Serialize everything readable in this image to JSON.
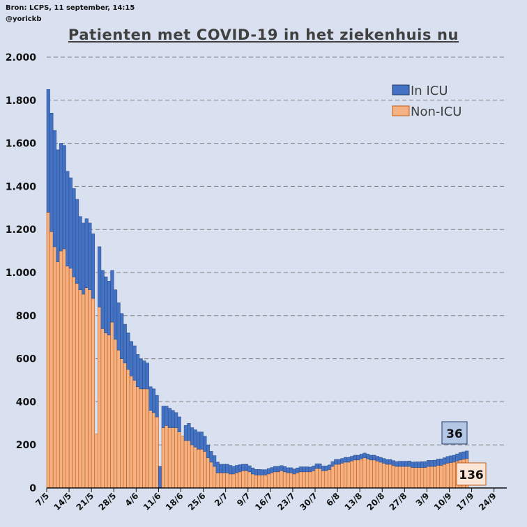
{
  "source": {
    "line1": "Bron: LCPS, 11 september, 14:15",
    "line2": "@yorickb"
  },
  "colors": {
    "icu": "#4472c4",
    "non_icu": "#f4b183",
    "grid": "#7f7f7f",
    "background": "#d9e1f0"
  },
  "chart_data": {
    "type": "bar",
    "stacked": true,
    "title": "Patienten met COVID-19 in het ziekenhuis nu",
    "xlabel": "",
    "ylabel": "",
    "ylim": [
      0,
      2000
    ],
    "yticks": [
      0,
      200,
      400,
      600,
      800,
      1000,
      1200,
      1400,
      1600,
      1800,
      2000
    ],
    "ytick_labels": [
      "0",
      "200",
      "400",
      "600",
      "800",
      "1.000",
      "1.200",
      "1.400",
      "1.600",
      "1.800",
      "2.000"
    ],
    "xtick_labels": [
      "7/5",
      "14/5",
      "21/5",
      "28/5",
      "4/6",
      "11/6",
      "18/6",
      "25/6",
      "2/7",
      "9/7",
      "16/7",
      "23/7",
      "30/7",
      "6/8",
      "13/8",
      "20/8",
      "27/8",
      "3/9",
      "10/9",
      "17/9",
      "24/9"
    ],
    "x_start": "2020-05-07",
    "x_end": "2020-09-28",
    "grid": "horizontal dashed",
    "legend_position": "top-right",
    "series": [
      {
        "name": "In ICU",
        "values": [
          570,
          550,
          540,
          520,
          500,
          480,
          440,
          420,
          410,
          390,
          340,
          330,
          320,
          310,
          300,
          0,
          280,
          270,
          260,
          250,
          240,
          230,
          220,
          210,
          180,
          170,
          160,
          160,
          150,
          140,
          130,
          120,
          110,
          110,
          100,
          100,
          100,
          90,
          90,
          80,
          70,
          70,
          0,
          70,
          80,
          80,
          80,
          80,
          80,
          70,
          60,
          50,
          50,
          50,
          40,
          40,
          40,
          40,
          35,
          35,
          33,
          30,
          30,
          28,
          28,
          26,
          26,
          25,
          25,
          25,
          25,
          25,
          25,
          24,
          24,
          24,
          24,
          23,
          23,
          23,
          23,
          23,
          22,
          22,
          22,
          22,
          22,
          22,
          22,
          22,
          22,
          22,
          22,
          22,
          22,
          22,
          22,
          22,
          22,
          22,
          22,
          22,
          22,
          22,
          22,
          22,
          22,
          22,
          22,
          22,
          24,
          24,
          24,
          25,
          25,
          26,
          26,
          27,
          27,
          28,
          28,
          29,
          29,
          30,
          30,
          31,
          31,
          32,
          33,
          34,
          35,
          36
        ],
        "color": "#4472c4"
      },
      {
        "name": "Non-ICU",
        "values": [
          1280,
          1190,
          1120,
          1050,
          1100,
          1110,
          1030,
          1020,
          980,
          950,
          920,
          900,
          930,
          920,
          880,
          250,
          840,
          740,
          720,
          710,
          770,
          690,
          640,
          600,
          580,
          550,
          520,
          500,
          470,
          460,
          460,
          460,
          360,
          350,
          330,
          0,
          280,
          290,
          280,
          280,
          280,
          260,
          240,
          220,
          220,
          200,
          190,
          180,
          180,
          170,
          140,
          120,
          100,
          70,
          70,
          70,
          70,
          65,
          65,
          70,
          75,
          80,
          80,
          75,
          65,
          60,
          60,
          60,
          60,
          65,
          70,
          75,
          75,
          80,
          75,
          70,
          70,
          65,
          70,
          75,
          75,
          75,
          75,
          80,
          90,
          90,
          80,
          80,
          85,
          100,
          110,
          110,
          115,
          120,
          120,
          125,
          130,
          130,
          135,
          140,
          135,
          130,
          130,
          125,
          120,
          115,
          110,
          110,
          105,
          100,
          100,
          100,
          100,
          100,
          95,
          95,
          95,
          95,
          95,
          100,
          100,
          100,
          105,
          105,
          110,
          115,
          118,
          120,
          125,
          130,
          133,
          136
        ],
        "color": "#f4b183"
      }
    ],
    "annotations": [
      {
        "label": "36",
        "series": "In ICU"
      },
      {
        "label": "136",
        "series": "Non-ICU"
      }
    ]
  }
}
